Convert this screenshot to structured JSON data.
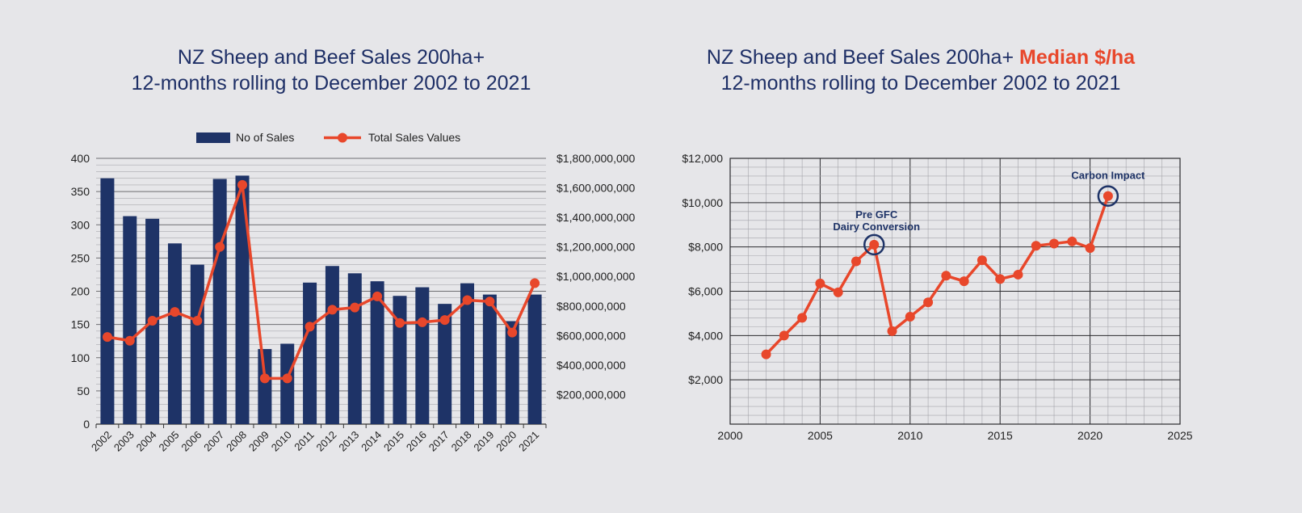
{
  "colors": {
    "background": "#e6e6e9",
    "navy": "#1e3367",
    "red": "#e8472b",
    "grid": "#8e8e92",
    "plot_bg_right": "#e6e6e9"
  },
  "left": {
    "title_line1": "NZ Sheep and Beef Sales 200ha+",
    "title_line2": "12-months rolling to December 2002 to 2021"
  },
  "right": {
    "title_line1": "NZ Sheep and Beef Sales 200ha+",
    "title_accent": "Median $/ha",
    "title_line2": "12-months rolling to December 2002 to 2021"
  },
  "chart_data": [
    {
      "type": "bar",
      "title": "NZ Sheep and Beef Sales 200ha+ 12-months rolling to December 2002 to 2021",
      "categories": [
        "2002",
        "2003",
        "2004",
        "2005",
        "2006",
        "2007",
        "2008",
        "2009",
        "2010",
        "2011",
        "2012",
        "2013",
        "2014",
        "2015",
        "2016",
        "2017",
        "2018",
        "2019",
        "2020",
        "2021"
      ],
      "series": [
        {
          "name": "No of Sales",
          "kind": "bar",
          "axis": "left",
          "color": "#1e3367",
          "values": [
            370,
            313,
            309,
            272,
            240,
            369,
            374,
            113,
            121,
            213,
            238,
            227,
            215,
            193,
            206,
            181,
            212,
            195,
            155,
            195
          ]
        },
        {
          "name": "Total Sales Values",
          "kind": "line",
          "axis": "right",
          "color": "#e8472b",
          "values": [
            590000000,
            565000000,
            700000000,
            760000000,
            700000000,
            1200000000,
            1620000000,
            310000000,
            310000000,
            660000000,
            775000000,
            790000000,
            865000000,
            685000000,
            690000000,
            705000000,
            840000000,
            830000000,
            620000000,
            955000000
          ]
        }
      ],
      "y_left": {
        "min": 0,
        "max": 400,
        "step": 50,
        "tick_labels": [
          "0",
          "50",
          "100",
          "150",
          "200",
          "250",
          "300",
          "350",
          "400"
        ]
      },
      "y_right": {
        "min": 0,
        "max": 1800000000,
        "step": 200000000,
        "tick_labels": [
          "$200,000,000",
          "$400,000,000",
          "$600,000,000",
          "$800,000,000",
          "$1,000,000,000",
          "$1,200,000,000",
          "$1,400,000,000",
          "$1,600,000,000",
          "$1,800,000,000"
        ]
      },
      "legend": {
        "position": "top-center",
        "items": [
          "No of Sales",
          "Total Sales Values"
        ]
      },
      "grid": true
    },
    {
      "type": "line",
      "title": "NZ Sheep and Beef Sales 200ha+ Median $/ha 12-months rolling to December 2002 to 2021",
      "series": [
        {
          "name": "Median $/ha",
          "color": "#e8472b",
          "x": [
            2002,
            2003,
            2004,
            2005,
            2006,
            2007,
            2008,
            2009,
            2010,
            2011,
            2012,
            2013,
            2014,
            2015,
            2016,
            2017,
            2018,
            2019,
            2020,
            2021
          ],
          "y": [
            3150,
            4000,
            4800,
            6350,
            5950,
            7350,
            8100,
            4200,
            4850,
            5500,
            6700,
            6450,
            7400,
            6550,
            6750,
            8050,
            8150,
            8250,
            7950,
            10300
          ]
        }
      ],
      "xlim": [
        2000,
        2025
      ],
      "ylim": [
        0,
        12000
      ],
      "x_tick_labels": [
        "2000",
        "2005",
        "2010",
        "2015",
        "2020",
        "2025"
      ],
      "y_tick_labels": [
        "$2,000",
        "$4,000",
        "$6,000",
        "$8,000",
        "$10,000",
        "$12,000"
      ],
      "annotations": [
        {
          "x": 2008,
          "y": 8100,
          "line1": "Pre GFC",
          "line2": "Dairy Conversion"
        },
        {
          "x": 2021,
          "y": 10300,
          "line1": "Carbon Impact",
          "line2": ""
        }
      ],
      "grid": true
    }
  ]
}
